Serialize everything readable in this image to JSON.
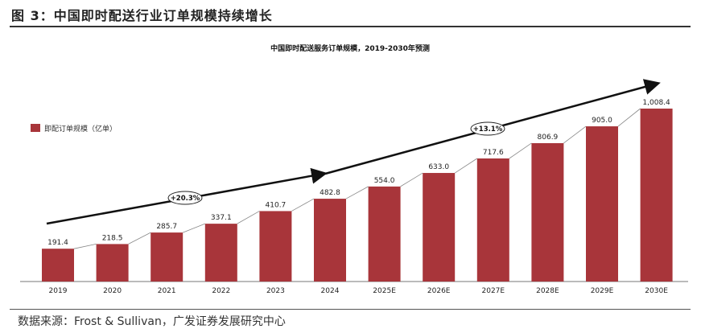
{
  "figure_title": "图 3：中国即时配送行业订单规模持续增长",
  "source": "数据来源：Frost & Sullivan，广发证券发展研究中心",
  "chart_data": {
    "type": "bar",
    "title": "中国即时配送服务订单规模，2019-2030年预测",
    "categories": [
      "2019",
      "2020",
      "2021",
      "2022",
      "2023",
      "2024",
      "2025E",
      "2026E",
      "2027E",
      "2028E",
      "2029E",
      "2030E"
    ],
    "series": [
      {
        "name": "即配订单规模（亿单）",
        "values": [
          191.4,
          218.5,
          285.7,
          337.1,
          410.7,
          482.8,
          554.0,
          633.0,
          717.6,
          806.9,
          905.0,
          1008.4
        ]
      }
    ],
    "value_labels": [
      "191.4",
      "218.5",
      "285.7",
      "337.1",
      "410.7",
      "482.8",
      "554.0",
      "633.0",
      "717.6",
      "806.9",
      "905.0",
      "1,008.4"
    ],
    "annotations": [
      {
        "label": "+20.3%",
        "from": "2019",
        "to": "2024"
      },
      {
        "label": "+13.1%",
        "from": "2024",
        "to": "2030E"
      }
    ],
    "ylim": [
      0,
      1008.4
    ],
    "grid": false,
    "legend": "top-left",
    "colors": {
      "bar": "#a8353a",
      "arrow": "#111111"
    }
  }
}
